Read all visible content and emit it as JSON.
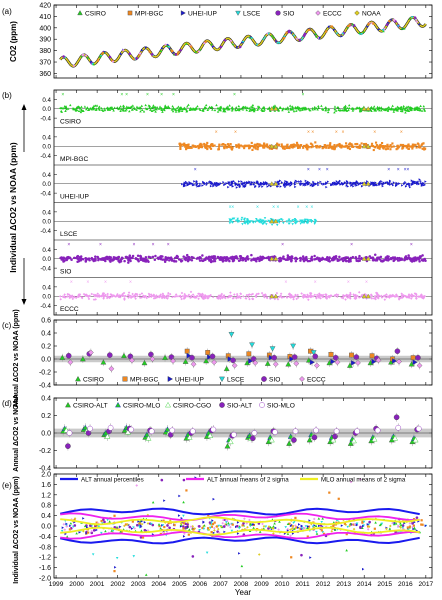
{
  "figure": {
    "x_ticks": [
      "1999",
      "2000",
      "2001",
      "2002",
      "2003",
      "2004",
      "2005",
      "2006",
      "2007",
      "2008",
      "2009",
      "2010",
      "2011",
      "2012",
      "2013",
      "2014",
      "2015",
      "2016",
      "2017"
    ],
    "x_label": "Year"
  },
  "colors": {
    "CSIRO": "#22cc22",
    "MPI-BGC": "#ee8822",
    "UHEI-IUP": "#1a1acc",
    "LSCE": "#22dddd",
    "SIO": "#8822bb",
    "ECCC": "#ee99ee",
    "NOAA": "#ddcc22",
    "band": "#b3b3b3",
    "ALT_pct": "#1a1aee",
    "ALT_mean": "#ee22ee",
    "MLO_mean": "#eeee22"
  },
  "chart_data": [
    {
      "panel": "(a)",
      "type": "line",
      "ylabel": "CO2 (ppm)",
      "ylim": [
        356,
        420
      ],
      "yticks": [
        "360",
        "370",
        "380",
        "390",
        "400",
        "410",
        "420"
      ],
      "legend": [
        "CSIRO",
        "MPI-BGC",
        "UHEI-IUP",
        "LSCE",
        "SIO",
        "ECCC",
        "NOAA"
      ],
      "series": [
        {
          "name": "NOAA",
          "trend_start": 369.5,
          "trend_slope_per_year": 2.05,
          "seasonal_amplitude": 4.5,
          "x_range": [
            1999.2,
            2017.0
          ]
        }
      ]
    },
    {
      "panel": "(b)",
      "type": "scatter",
      "ylabel": "Individual ΔCO2 vs NOAA (ppm)",
      "ylim": [
        -0.8,
        0.8
      ],
      "yticks": [
        "-0.4",
        "0.0",
        "0.4"
      ],
      "sublabels": [
        "CSIRO",
        "MPI-BGC",
        "UHEI-IUP",
        "LSCE",
        "SIO",
        "ECCC"
      ],
      "subseries": [
        {
          "name": "CSIRO",
          "x_range": [
            1999.2,
            2017.0
          ],
          "mean": 0.0
        },
        {
          "name": "MPI-BGC",
          "x_range": [
            2005.0,
            2017.0
          ],
          "mean": 0.0
        },
        {
          "name": "UHEI-IUP",
          "x_range": [
            2005.1,
            2017.0
          ],
          "mean": 0.0
        },
        {
          "name": "LSCE",
          "x_range": [
            2007.4,
            2011.7
          ],
          "mean": 0.0
        },
        {
          "name": "SIO",
          "x_range": [
            1999.2,
            2017.0
          ],
          "mean": 0.0
        },
        {
          "name": "ECCC",
          "x_range": [
            1999.2,
            2017.0
          ],
          "mean": 0.0
        }
      ]
    },
    {
      "panel": "(c)",
      "type": "scatter",
      "ylabel": "Annual ΔCO2 vs NOAA (ppm)",
      "ylim": [
        -0.4,
        0.6
      ],
      "yticks": [
        "-0.4",
        "-0.2",
        "0.0",
        "0.2",
        "0.4",
        "0.6"
      ],
      "legend": [
        "CSIRO",
        "MPI-BGC",
        "UHEI-IUP",
        "LSCE",
        "SIO",
        "ECCC"
      ],
      "years": [
        1999,
        2000,
        2001,
        2002,
        2003,
        2004,
        2005,
        2006,
        2007,
        2008,
        2009,
        2010,
        2011,
        2012,
        2013,
        2014,
        2015,
        2016
      ],
      "series": [
        {
          "name": "CSIRO",
          "values": [
            0.02,
            0.0,
            -0.05,
            0.05,
            -0.06,
            0.02,
            -0.04,
            -0.03,
            -0.15,
            -0.06,
            -0.07,
            -0.08,
            -0.02,
            -0.06,
            -0.1,
            -0.06,
            -0.05,
            -0.08
          ]
        },
        {
          "name": "MPI-BGC",
          "values": [
            null,
            null,
            null,
            null,
            null,
            null,
            0.12,
            0.1,
            0.05,
            0.08,
            0.06,
            0.04,
            0.12,
            0.07,
            0.06,
            0.05,
            0.0,
            0.02
          ]
        },
        {
          "name": "UHEI-IUP",
          "values": [
            null,
            null,
            null,
            null,
            null,
            null,
            0.05,
            0.03,
            0.0,
            -0.03,
            0.02,
            0.0,
            -0.05,
            -0.04,
            -0.06,
            -0.04,
            -0.03,
            -0.05
          ]
        },
        {
          "name": "LSCE",
          "values": [
            null,
            null,
            null,
            null,
            null,
            null,
            null,
            null,
            0.38,
            0.22,
            0.16,
            0.2,
            0.1,
            null,
            null,
            null,
            null,
            null
          ]
        },
        {
          "name": "SIO",
          "values": [
            0.05,
            0.08,
            0.06,
            0.04,
            0.07,
            0.03,
            0.02,
            0.04,
            -0.02,
            0.0,
            0.02,
            0.03,
            0.04,
            0.02,
            0.03,
            0.01,
            0.12,
            0.02
          ]
        },
        {
          "name": "ECCC",
          "values": [
            -0.05,
            0.1,
            -0.15,
            -0.02,
            0.0,
            -0.03,
            -0.08,
            -0.05,
            -0.1,
            -0.06,
            -0.08,
            -0.07,
            -0.1,
            -0.05,
            -0.06,
            -0.02,
            -0.04,
            -0.1
          ]
        }
      ]
    },
    {
      "panel": "(d)",
      "type": "scatter",
      "ylabel": "Annual ΔCO2 vs NOAA",
      "ylim": [
        -0.4,
        0.4
      ],
      "yticks": [
        "-0.4",
        "-0.2",
        "0.0",
        "0.2",
        "0.4"
      ],
      "legend": [
        "CSIRO-ALT",
        "CSIRO-MLO",
        "CSIRO-CGO",
        "SIO-ALT",
        "SIO-MLO"
      ],
      "years": [
        1999,
        2000,
        2001,
        2002,
        2003,
        2004,
        2005,
        2006,
        2007,
        2008,
        2009,
        2010,
        2011,
        2012,
        2013,
        2014,
        2015,
        2016
      ],
      "series": [
        {
          "name": "CSIRO-ALT",
          "values": [
            0.02,
            0.04,
            -0.02,
            0.03,
            -0.05,
            0.01,
            -0.06,
            -0.04,
            -0.15,
            -0.05,
            -0.1,
            -0.12,
            -0.08,
            -0.1,
            -0.12,
            -0.09,
            -0.08,
            -0.1
          ]
        },
        {
          "name": "CSIRO-MLO",
          "values": [
            0.05,
            0.06,
            0.0,
            0.06,
            -0.02,
            0.04,
            -0.02,
            0.0,
            -0.08,
            -0.03,
            -0.05,
            -0.04,
            -0.02,
            -0.05,
            -0.07,
            -0.05,
            -0.04,
            -0.06
          ]
        },
        {
          "name": "CSIRO-CGO",
          "values": [
            0.03,
            0.02,
            -0.04,
            0.01,
            -0.06,
            0.0,
            -0.05,
            -0.03,
            -0.1,
            -0.06,
            -0.08,
            -0.07,
            -0.04,
            -0.08,
            -0.09,
            -0.07,
            -0.06,
            -0.08
          ]
        },
        {
          "name": "SIO-ALT",
          "values": [
            -0.15,
            0.0,
            0.02,
            0.05,
            0.03,
            -0.02,
            0.0,
            0.03,
            -0.03,
            -0.06,
            0.02,
            -0.08,
            -0.05,
            -0.04,
            0.0,
            0.05,
            0.18,
            0.04
          ]
        },
        {
          "name": "SIO-MLO",
          "values": [
            0.0,
            0.05,
            0.06,
            0.04,
            0.02,
            0.03,
            0.02,
            0.04,
            -0.02,
            0.0,
            0.01,
            0.02,
            0.03,
            0.02,
            0.02,
            0.03,
            0.06,
            0.05
          ]
        }
      ]
    },
    {
      "panel": "(e)",
      "type": "scatter",
      "ylabel": "Individual ΔCO2 vs NOAA (ppm)",
      "ylim": [
        -2.0,
        2.0
      ],
      "yticks": [
        "-2.0",
        "-1.6",
        "-1.2",
        "-0.8",
        "-0.4",
        "0.0",
        "0.4",
        "0.8",
        "1.2",
        "1.6",
        "2.0"
      ],
      "legend": [
        "ALT annual percentiles",
        "ALT annual means of 2 sigma",
        "MLO annual means of 2 sigma"
      ],
      "series": [
        {
          "name": "ALT annual percentiles",
          "upper": 0.55,
          "lower": -0.55
        },
        {
          "name": "ALT annual means of 2 sigma",
          "upper": 0.35,
          "lower": -0.35
        },
        {
          "name": "MLO annual means of 2 sigma",
          "upper": 0.2,
          "lower": -0.2
        }
      ]
    }
  ]
}
